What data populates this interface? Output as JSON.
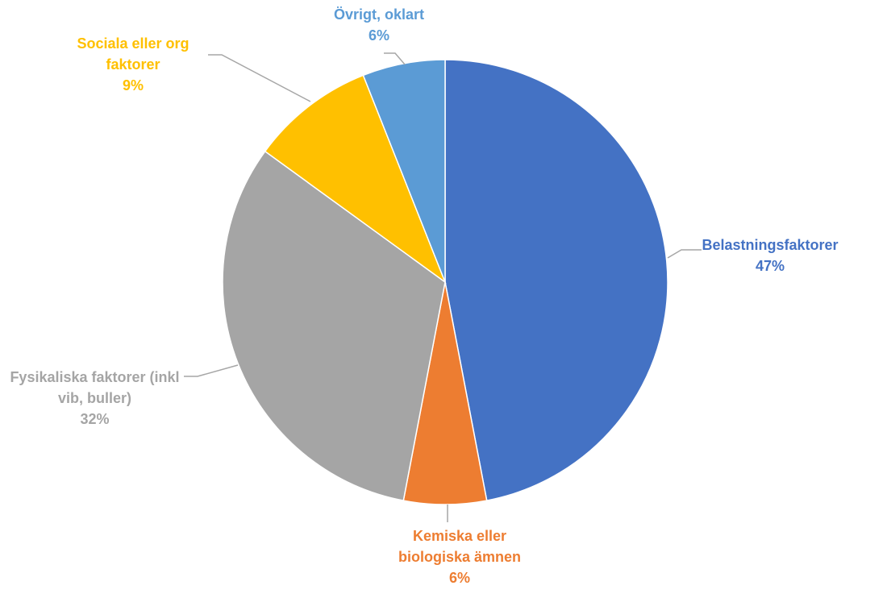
{
  "chart_data": {
    "type": "pie",
    "categories": [
      "Belastningsfaktorer",
      "Kemiska eller biologiska ämnen",
      "Fysikaliska faktorer (inkl vib, buller)",
      "Sociala eller org faktorer",
      "Övrigt, oklart"
    ],
    "values": [
      47,
      6,
      32,
      9,
      6
    ],
    "value_labels": [
      "47%",
      "6%",
      "32%",
      "9%",
      "6%"
    ],
    "colors": [
      "#4472c4",
      "#ed7d31",
      "#a5a5a5",
      "#ffc000",
      "#5b9bd5"
    ]
  }
}
